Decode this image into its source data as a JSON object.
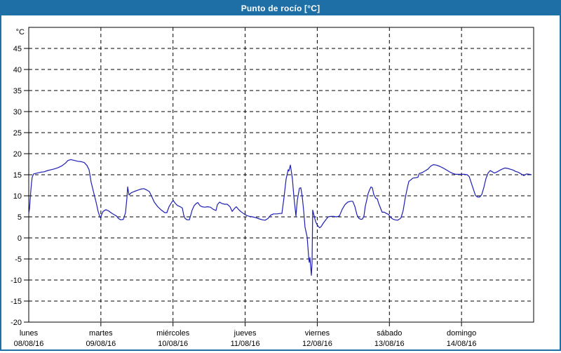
{
  "window": {
    "title": "Punto de rocío [°C]"
  },
  "colors": {
    "titlebar_bg": "#1d6fa5",
    "titlebar_text": "#ffffff",
    "window_border": "#1d6fa5",
    "plot_background": "#ffffff",
    "grid_color": "#000000",
    "axis_color": "#000000",
    "text_color": "#000000",
    "line_color": "#1e1eb4"
  },
  "chart_data": {
    "type": "line",
    "title": "Punto de rocío [°C]",
    "xlabel": "",
    "ylabel": "°C",
    "ylim": [
      -20,
      50
    ],
    "ytick_step": 5,
    "ytick_labels": [
      45,
      40,
      35,
      30,
      25,
      20,
      15,
      10,
      5,
      0,
      -5,
      -10,
      -15,
      -20
    ],
    "grid": "dashed",
    "legend_position": "none",
    "days": [
      {
        "name": "lunes",
        "date": "08/08/16"
      },
      {
        "name": "martes",
        "date": "09/08/16"
      },
      {
        "name": "miércoles",
        "date": "10/08/16"
      },
      {
        "name": "jueves",
        "date": "11/08/16"
      },
      {
        "name": "viernes",
        "date": "12/08/16"
      },
      {
        "name": "sábado",
        "date": "13/08/16"
      },
      {
        "name": "domingo",
        "date": "14/08/16"
      }
    ],
    "series": [
      {
        "name": "Punto de rocío",
        "color": "#1e1eb4",
        "points": [
          [
            0,
            5.8
          ],
          [
            0.01,
            6.8
          ],
          [
            0.019,
            9.1
          ],
          [
            0.029,
            11.3
          ],
          [
            0.039,
            13.2
          ],
          [
            0.049,
            14.5
          ],
          [
            0.068,
            15.2
          ],
          [
            0.117,
            15.4
          ],
          [
            0.165,
            15.6
          ],
          [
            0.214,
            15.7
          ],
          [
            0.262,
            16
          ],
          [
            0.311,
            16.2
          ],
          [
            0.36,
            16.4
          ],
          [
            0.408,
            16.7
          ],
          [
            0.457,
            17.1
          ],
          [
            0.506,
            17.7
          ],
          [
            0.544,
            18.4
          ],
          [
            0.583,
            18.6
          ],
          [
            0.632,
            18.4
          ],
          [
            0.68,
            18.2
          ],
          [
            0.729,
            18.1
          ],
          [
            0.768,
            17.9
          ],
          [
            0.807,
            17.2
          ],
          [
            0.836,
            16.2
          ],
          [
            0.865,
            13.2
          ],
          [
            0.904,
            10.5
          ],
          [
            0.933,
            8.5
          ],
          [
            0.962,
            6.3
          ],
          [
            0.982,
            5.2
          ],
          [
            0.992,
            4.8
          ],
          [
            1.031,
            6.3
          ],
          [
            1.069,
            6.7
          ],
          [
            1.108,
            6.4
          ],
          [
            1.147,
            5.9
          ],
          [
            1.186,
            5.5
          ],
          [
            1.215,
            5.2
          ],
          [
            1.244,
            4.6
          ],
          [
            1.274,
            4.3
          ],
          [
            1.312,
            4.4
          ],
          [
            1.342,
            6
          ],
          [
            1.361,
            9.5
          ],
          [
            1.371,
            12.1
          ],
          [
            1.39,
            10.2
          ],
          [
            1.419,
            10.7
          ],
          [
            1.458,
            11
          ],
          [
            1.507,
            11.3
          ],
          [
            1.556,
            11.6
          ],
          [
            1.595,
            11.7
          ],
          [
            1.633,
            11.4
          ],
          [
            1.672,
            11
          ],
          [
            1.711,
            9.6
          ],
          [
            1.74,
            8.5
          ],
          [
            1.789,
            7.4
          ],
          [
            1.838,
            6.6
          ],
          [
            1.886,
            6
          ],
          [
            1.915,
            6
          ],
          [
            1.944,
            7.4
          ],
          [
            1.983,
            8.5
          ],
          [
            2.003,
            8.9
          ],
          [
            2.032,
            8.2
          ],
          [
            2.061,
            7.7
          ],
          [
            2.1,
            7.4
          ],
          [
            2.129,
            7.1
          ],
          [
            2.149,
            5.4
          ],
          [
            2.168,
            4.6
          ],
          [
            2.197,
            4.3
          ],
          [
            2.226,
            4.3
          ],
          [
            2.246,
            5.4
          ],
          [
            2.265,
            6.6
          ],
          [
            2.294,
            7.7
          ],
          [
            2.324,
            8.2
          ],
          [
            2.343,
            8.4
          ],
          [
            2.372,
            7.7
          ],
          [
            2.401,
            7.4
          ],
          [
            2.44,
            7.3
          ],
          [
            2.479,
            7.4
          ],
          [
            2.518,
            7.3
          ],
          [
            2.557,
            6.8
          ],
          [
            2.596,
            6.5
          ],
          [
            2.615,
            7.9
          ],
          [
            2.645,
            8.5
          ],
          [
            2.674,
            8.2
          ],
          [
            2.713,
            8
          ],
          [
            2.751,
            8
          ],
          [
            2.79,
            7.4
          ],
          [
            2.82,
            6.3
          ],
          [
            2.858,
            7.1
          ],
          [
            2.878,
            7.4
          ],
          [
            2.907,
            6.8
          ],
          [
            2.936,
            6.3
          ],
          [
            2.985,
            5.7
          ],
          [
            3.024,
            5.3
          ],
          [
            3.063,
            5.1
          ],
          [
            3.102,
            5
          ],
          [
            3.15,
            4.8
          ],
          [
            3.199,
            4.5
          ],
          [
            3.238,
            4.3
          ],
          [
            3.277,
            4.2
          ],
          [
            3.316,
            4.6
          ],
          [
            3.354,
            5.4
          ],
          [
            3.393,
            5.7
          ],
          [
            3.442,
            5.7
          ],
          [
            3.481,
            5.8
          ],
          [
            3.51,
            5.8
          ],
          [
            3.539,
            9.6
          ],
          [
            3.568,
            14
          ],
          [
            3.597,
            16.2
          ],
          [
            3.607,
            15.9
          ],
          [
            3.627,
            17.3
          ],
          [
            3.656,
            14
          ],
          [
            3.675,
            9.9
          ],
          [
            3.704,
            5.2
          ],
          [
            3.724,
            9
          ],
          [
            3.753,
            11.8
          ],
          [
            3.772,
            11.9
          ],
          [
            3.792,
            9.8
          ],
          [
            3.811,
            6.5
          ],
          [
            3.831,
            2.5
          ],
          [
            3.85,
            1
          ],
          [
            3.86,
            0.2
          ],
          [
            3.879,
            -4.2
          ],
          [
            3.889,
            -5.8
          ],
          [
            3.899,
            -4.7
          ],
          [
            3.918,
            -8.9
          ],
          [
            3.928,
            -6
          ],
          [
            3.937,
            6.6
          ],
          [
            3.957,
            5.2
          ],
          [
            3.976,
            3.9
          ],
          [
            3.996,
            3.2
          ],
          [
            4.015,
            2.7
          ],
          [
            4.034,
            2.4
          ],
          [
            4.054,
            2.7
          ],
          [
            4.083,
            3.5
          ],
          [
            4.122,
            4.4
          ],
          [
            4.151,
            5
          ],
          [
            4.19,
            5.1
          ],
          [
            4.229,
            5.1
          ],
          [
            4.268,
            5
          ],
          [
            4.307,
            5.2
          ],
          [
            4.346,
            6.8
          ],
          [
            4.385,
            7.9
          ],
          [
            4.423,
            8.5
          ],
          [
            4.462,
            8.7
          ],
          [
            4.492,
            8.7
          ],
          [
            4.521,
            7.5
          ],
          [
            4.55,
            5.5
          ],
          [
            4.579,
            4.6
          ],
          [
            4.608,
            4.4
          ],
          [
            4.628,
            4.5
          ],
          [
            4.647,
            5.2
          ],
          [
            4.666,
            7.5
          ],
          [
            4.686,
            9
          ],
          [
            4.705,
            10.5
          ],
          [
            4.725,
            11.4
          ],
          [
            4.744,
            12.1
          ],
          [
            4.764,
            11.9
          ],
          [
            4.783,
            10.3
          ],
          [
            4.812,
            9.4
          ],
          [
            4.832,
            9.3
          ],
          [
            4.851,
            8.2
          ],
          [
            4.87,
            7.4
          ],
          [
            4.899,
            6.1
          ],
          [
            4.929,
            6.1
          ],
          [
            4.958,
            5.8
          ],
          [
            4.987,
            5.6
          ],
          [
            5.016,
            4.9
          ],
          [
            5.045,
            4.5
          ],
          [
            5.075,
            4.3
          ],
          [
            5.113,
            4.2
          ],
          [
            5.143,
            4.5
          ],
          [
            5.162,
            4.8
          ],
          [
            5.191,
            6.5
          ],
          [
            5.22,
            9.5
          ],
          [
            5.25,
            12
          ],
          [
            5.269,
            13.4
          ],
          [
            5.298,
            13.8
          ],
          [
            5.327,
            14.2
          ],
          [
            5.366,
            14.3
          ],
          [
            5.395,
            14.4
          ],
          [
            5.415,
            15.3
          ],
          [
            5.454,
            15.5
          ],
          [
            5.493,
            15.9
          ],
          [
            5.532,
            16.3
          ],
          [
            5.57,
            17
          ],
          [
            5.609,
            17.4
          ],
          [
            5.648,
            17.3
          ],
          [
            5.697,
            17
          ],
          [
            5.745,
            16.6
          ],
          [
            5.794,
            16.1
          ],
          [
            5.843,
            15.6
          ],
          [
            5.882,
            15.3
          ],
          [
            5.921,
            15.1
          ],
          [
            5.96,
            15.1
          ],
          [
            5.999,
            15.1
          ],
          [
            6.038,
            15.1
          ],
          [
            6.077,
            15
          ],
          [
            6.106,
            14.6
          ],
          [
            6.135,
            13.1
          ],
          [
            6.164,
            11.6
          ],
          [
            6.193,
            10.1
          ],
          [
            6.222,
            9.7
          ],
          [
            6.252,
            9.7
          ],
          [
            6.281,
            10.3
          ],
          [
            6.31,
            12
          ],
          [
            6.339,
            14.1
          ],
          [
            6.368,
            15.4
          ],
          [
            6.397,
            16
          ],
          [
            6.427,
            15.7
          ],
          [
            6.456,
            15.4
          ],
          [
            6.495,
            15.7
          ],
          [
            6.534,
            16.1
          ],
          [
            6.572,
            16.4
          ],
          [
            6.601,
            16.6
          ],
          [
            6.64,
            16.5
          ],
          [
            6.679,
            16.3
          ],
          [
            6.718,
            16.1
          ],
          [
            6.747,
            15.8
          ],
          [
            6.786,
            15.6
          ],
          [
            6.825,
            15.2
          ],
          [
            6.864,
            14.8
          ],
          [
            6.903,
            15.2
          ],
          [
            6.942,
            15.1
          ],
          [
            6.971,
            15
          ]
        ]
      }
    ]
  }
}
